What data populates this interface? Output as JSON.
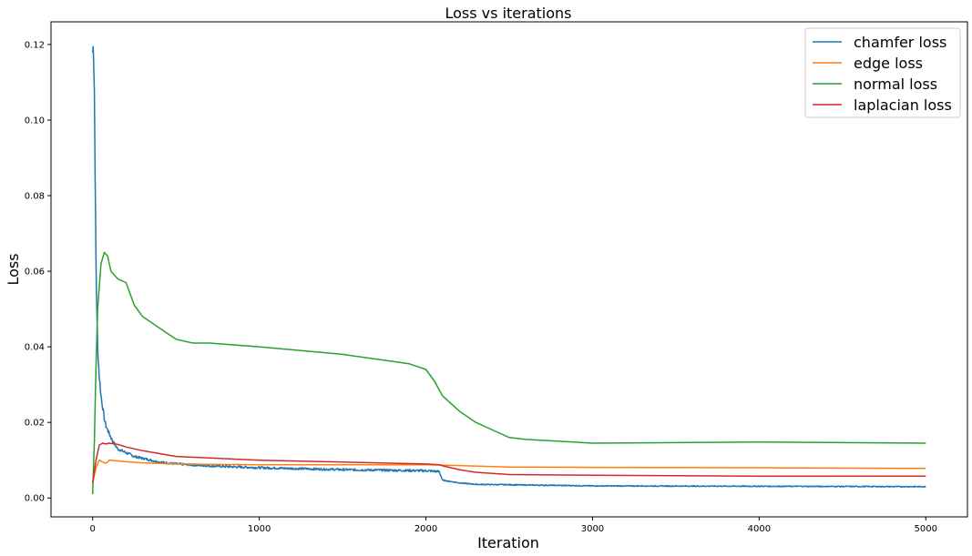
{
  "chart_data": {
    "type": "line",
    "title": "Loss vs iterations",
    "xlabel": "Iteration",
    "ylabel": "Loss",
    "xlim": [
      -250,
      5250
    ],
    "ylim": [
      -0.005,
      0.126
    ],
    "xticks": [
      0,
      1000,
      2000,
      3000,
      4000,
      5000
    ],
    "xtick_labels": [
      "0",
      "1000",
      "2000",
      "3000",
      "4000",
      "5000"
    ],
    "yticks": [
      0.0,
      0.02,
      0.04,
      0.06,
      0.08,
      0.1,
      0.12
    ],
    "ytick_labels": [
      "0.00",
      "0.02",
      "0.04",
      "0.06",
      "0.08",
      "0.10",
      "0.12"
    ],
    "grid": false,
    "legend_position": "top-right",
    "series": [
      {
        "name": "chamfer loss",
        "color": "#1f77b4",
        "noisy": true,
        "x": [
          0,
          5,
          10,
          15,
          20,
          25,
          30,
          40,
          50,
          60,
          70,
          80,
          100,
          120,
          150,
          200,
          250,
          300,
          400,
          500,
          700,
          1000,
          1500,
          2000,
          2080,
          2100,
          2200,
          2300,
          2500,
          3000,
          4000,
          5000
        ],
        "y": [
          0.118,
          0.12,
          0.108,
          0.085,
          0.062,
          0.05,
          0.04,
          0.032,
          0.027,
          0.024,
          0.021,
          0.019,
          0.017,
          0.015,
          0.013,
          0.012,
          0.011,
          0.0105,
          0.0095,
          0.009,
          0.0085,
          0.008,
          0.0075,
          0.0072,
          0.007,
          0.0047,
          0.004,
          0.0036,
          0.0035,
          0.0032,
          0.0031,
          0.003
        ]
      },
      {
        "name": "edge loss",
        "color": "#ff7f0e",
        "noisy": false,
        "x": [
          0,
          20,
          40,
          60,
          80,
          100,
          150,
          200,
          300,
          500,
          1000,
          1500,
          2000,
          2100,
          2500,
          3000,
          4000,
          5000
        ],
        "y": [
          0.004,
          0.008,
          0.01,
          0.0095,
          0.0092,
          0.01,
          0.0098,
          0.0096,
          0.0093,
          0.009,
          0.0088,
          0.0088,
          0.0088,
          0.0087,
          0.0082,
          0.0081,
          0.008,
          0.0078
        ]
      },
      {
        "name": "normal loss",
        "color": "#2ca02c",
        "noisy": false,
        "x": [
          0,
          10,
          20,
          30,
          50,
          70,
          90,
          110,
          150,
          200,
          250,
          300,
          400,
          500,
          600,
          700,
          1000,
          1500,
          1900,
          2000,
          2050,
          2100,
          2200,
          2300,
          2400,
          2500,
          2600,
          2800,
          3000,
          4000,
          5000
        ],
        "y": [
          0.001,
          0.015,
          0.035,
          0.05,
          0.062,
          0.065,
          0.064,
          0.06,
          0.058,
          0.057,
          0.051,
          0.048,
          0.045,
          0.042,
          0.041,
          0.041,
          0.04,
          0.038,
          0.0355,
          0.034,
          0.031,
          0.027,
          0.023,
          0.02,
          0.018,
          0.016,
          0.0155,
          0.015,
          0.0145,
          0.0148,
          0.0145
        ]
      },
      {
        "name": "laplacian loss",
        "color": "#d62728",
        "noisy": false,
        "x": [
          0,
          20,
          40,
          60,
          80,
          100,
          150,
          200,
          300,
          500,
          1000,
          1500,
          2000,
          2080,
          2100,
          2200,
          2300,
          2500,
          3000,
          4000,
          5000
        ],
        "y": [
          0.004,
          0.01,
          0.014,
          0.0145,
          0.0143,
          0.0145,
          0.0142,
          0.0135,
          0.0125,
          0.011,
          0.01,
          0.0095,
          0.009,
          0.0088,
          0.0085,
          0.0075,
          0.0068,
          0.0062,
          0.006,
          0.0058,
          0.0058
        ]
      }
    ]
  }
}
